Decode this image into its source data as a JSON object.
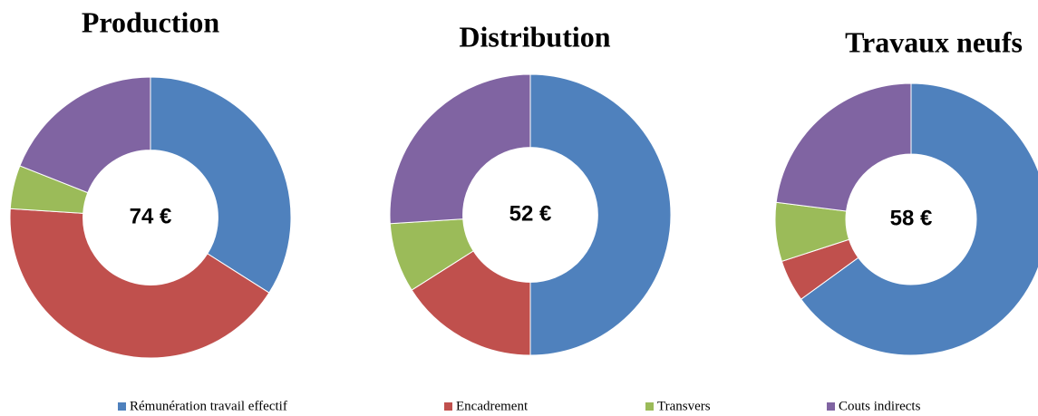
{
  "chart_data": [
    {
      "type": "pie",
      "title": "Production",
      "center_label": "74 €",
      "values": [
        34,
        42,
        5,
        19
      ]
    },
    {
      "type": "pie",
      "title": "Distribution",
      "center_label": "52 €",
      "values": [
        50,
        16,
        8,
        26
      ]
    },
    {
      "type": "pie",
      "title": "Travaux neufs",
      "center_label": "58 €",
      "values": [
        65,
        5,
        7,
        23
      ]
    }
  ],
  "legend": {
    "categories": [
      "Rémunération travail effectif",
      "Encadrement",
      "Transvers",
      "Couts indirects"
    ],
    "colors": [
      "#4f81bd",
      "#c0504d",
      "#9bbb59",
      "#8064a2"
    ]
  }
}
